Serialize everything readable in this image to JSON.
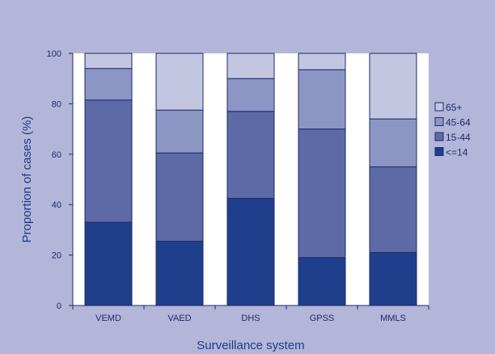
{
  "chart_data": {
    "type": "bar",
    "stacked": true,
    "categories": [
      "VEMD",
      "VAED",
      "DHS",
      "GPSS",
      "MMLS"
    ],
    "series": [
      {
        "name": "<=14",
        "color": "#1f3f8c",
        "values": [
          33,
          25.5,
          42.5,
          19,
          21
        ]
      },
      {
        "name": "15-44",
        "color": "#5e6aa6",
        "values": [
          48.5,
          35,
          34.5,
          51,
          34
        ]
      },
      {
        "name": "45-64",
        "color": "#8c96c4",
        "values": [
          12.5,
          17,
          13,
          23.5,
          19
        ]
      },
      {
        "name": "65+",
        "color": "#c3c6e0",
        "values": [
          6,
          22.5,
          10,
          6.5,
          26
        ]
      }
    ],
    "xlabel": "Surveillance system",
    "ylabel": "Proportion of cases (%)",
    "ylim": [
      0,
      100
    ],
    "yticks": [
      0,
      20,
      40,
      60,
      80,
      100
    ],
    "grid": false,
    "legend_position": "right",
    "colors": {
      "plot_background": "#ffffff",
      "frame_background": "#b3b6d8",
      "outline": "#1f2a6b"
    }
  }
}
